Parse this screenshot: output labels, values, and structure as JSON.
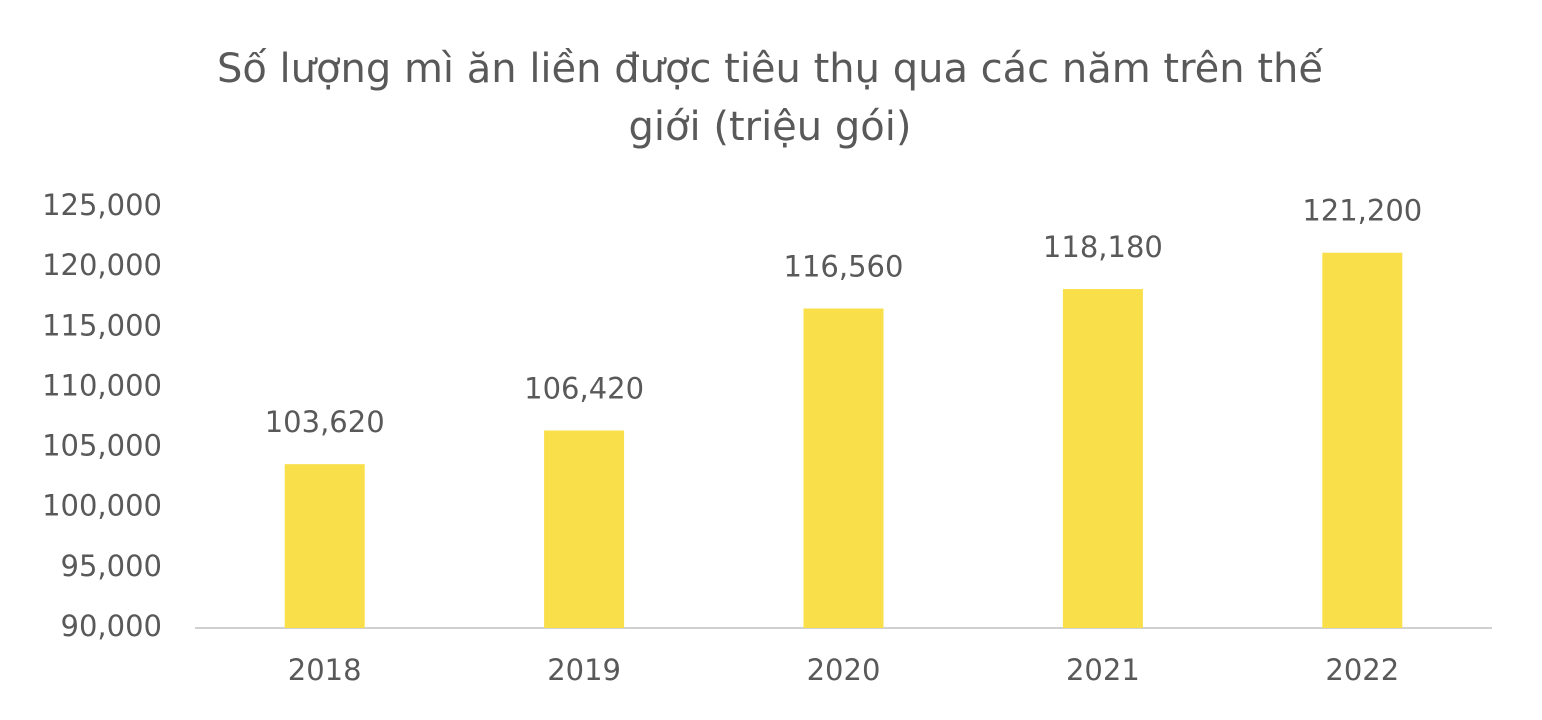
{
  "chart_data": {
    "type": "bar",
    "title": "Số lượng mì ăn liền được tiêu thụ qua các năm trên thế giới (triệu gói)",
    "categories": [
      "2018",
      "2019",
      "2020",
      "2021",
      "2022"
    ],
    "values": [
      103620,
      106420,
      116560,
      118180,
      121200
    ],
    "value_labels": [
      "103,620",
      "106,420",
      "116,560",
      "118,180",
      "121,200"
    ],
    "color": "#f9df4a",
    "ylim": [
      90000,
      125000
    ],
    "yticks": [
      {
        "value": 90000,
        "label": "90,000"
      },
      {
        "value": 95000,
        "label": "95,000"
      },
      {
        "value": 100000,
        "label": "100,000"
      },
      {
        "value": 105000,
        "label": "105,000"
      },
      {
        "value": 110000,
        "label": "110,000"
      },
      {
        "value": 115000,
        "label": "115,000"
      },
      {
        "value": 120000,
        "label": "120,000"
      },
      {
        "value": 125000,
        "label": "125,000"
      }
    ],
    "grid": false
  }
}
